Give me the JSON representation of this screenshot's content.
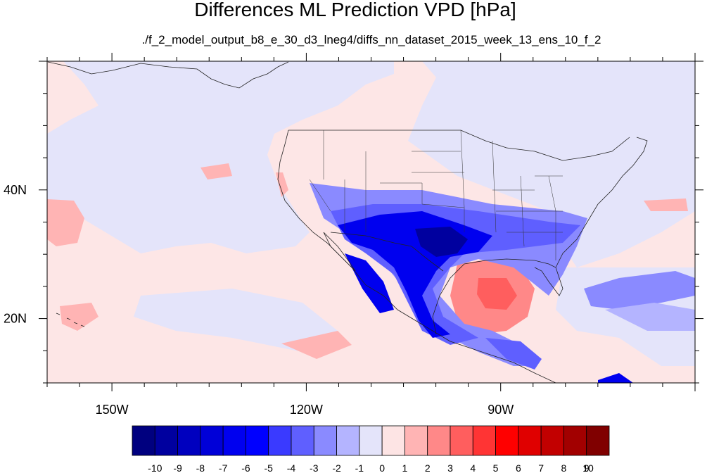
{
  "title": "Differences ML Prediction VPD [hPa]",
  "subtitle": "./f_2_model_output_b8_e_30_d3_lneg4/diffs_nn_dataset_2015_week_13_ens_10_f_2",
  "map": {
    "lon_range": [
      -160,
      -60
    ],
    "lat_range": [
      10,
      60
    ],
    "lon_ticks": [
      {
        "value": -150,
        "label": "150W"
      },
      {
        "value": -120,
        "label": "120W"
      },
      {
        "value": -90,
        "label": "90W"
      }
    ],
    "lat_ticks": [
      {
        "value": 40,
        "label": "40N"
      },
      {
        "value": 20,
        "label": "20N"
      }
    ]
  },
  "colorbar": {
    "labels": [
      "-10",
      "-9",
      "-8",
      "-7",
      "-6",
      "-5",
      "-4",
      "-3",
      "-2",
      "-1",
      "0",
      "1",
      "2",
      "3",
      "4",
      "5",
      "6",
      "7",
      "8",
      "9",
      "10"
    ],
    "colors": [
      "#00007f",
      "#00009f",
      "#0000bf",
      "#0000d8",
      "#0000ef",
      "#0000ff",
      "#3a3aff",
      "#5f5fff",
      "#8a8aff",
      "#b4b4ff",
      "#e4e4fa",
      "#fde4e4",
      "#ffb4b4",
      "#ff8888",
      "#ff5e5e",
      "#ff3434",
      "#ff0000",
      "#e00000",
      "#c20000",
      "#a20000",
      "#800000"
    ]
  }
}
